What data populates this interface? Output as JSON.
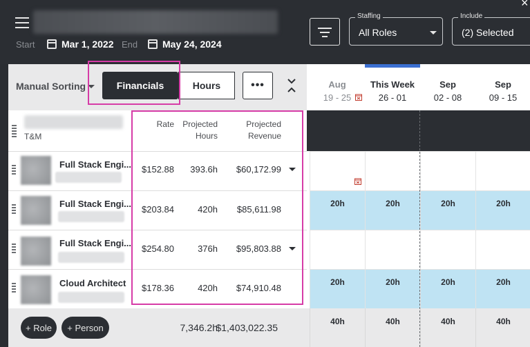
{
  "header": {
    "start_label": "Start",
    "start_date": "Mar 1, 2022",
    "end_label": "End",
    "end_date": "May 24, 2024",
    "staffing": {
      "legend": "Staffing",
      "value": "All Roles"
    },
    "include": {
      "legend": "Include",
      "value": "(2) Selected"
    },
    "close": "×"
  },
  "toolbar": {
    "sort_label": "Manual Sorting",
    "financials_label": "Financials",
    "hours_label": "Hours",
    "more_label": "•••"
  },
  "weeks": [
    {
      "month": "Aug",
      "dates": "19 - 25",
      "dim": true
    },
    {
      "month": "This Week",
      "dates": "26 - 01",
      "dim": false
    },
    {
      "month": "Sep",
      "dates": "02 - 08",
      "dim": false
    },
    {
      "month": "Sep",
      "dates": "09 - 15",
      "dim": false
    }
  ],
  "table": {
    "group_label": "T&M",
    "columns": {
      "rate": "Rate",
      "proj_hours": [
        "Projected",
        "Hours"
      ],
      "proj_revenue": [
        "Projected",
        "Revenue"
      ]
    },
    "rows": [
      {
        "title": "Full Stack Engi...",
        "rate": "$152.88",
        "hours": "393.6h",
        "revenue": "$60,172.99",
        "expand": true,
        "cal": [
          "",
          "",
          "",
          ""
        ]
      },
      {
        "title": "Full Stack Engi...",
        "rate": "$203.84",
        "hours": "420h",
        "revenue": "$85,611.98",
        "expand": false,
        "cal": [
          "20h",
          "20h",
          "20h",
          "20h"
        ]
      },
      {
        "title": "Full Stack Engi...",
        "rate": "$254.80",
        "hours": "376h",
        "revenue": "$95,803.88",
        "expand": true,
        "cal": [
          "",
          "",
          "",
          ""
        ]
      },
      {
        "title": "Cloud Architect",
        "rate": "$178.36",
        "hours": "420h",
        "revenue": "$74,910.48",
        "expand": false,
        "cal": [
          "20h",
          "20h",
          "20h",
          "20h"
        ]
      }
    ]
  },
  "footer": {
    "add_role": "+ Role",
    "add_person": "+ Person",
    "total_hours": "7,346.2h",
    "total_revenue": "$1,403,022.35",
    "week_totals": [
      "40h",
      "40h",
      "40h",
      "40h"
    ]
  },
  "colors": {
    "accent": "#3b6fd1",
    "highlight": "#d63ba7",
    "allocated": "#bfe3f3",
    "dark": "#2b2e33"
  }
}
